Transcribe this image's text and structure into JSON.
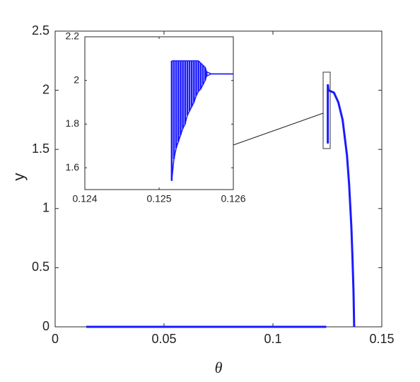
{
  "chart_data": [
    {
      "type": "line",
      "x_label": "θ",
      "y_label": "y",
      "xlim": [
        0,
        0.15
      ],
      "ylim": [
        0,
        2.5
      ],
      "xticks": [
        0,
        0.05,
        0.1,
        0.15
      ],
      "yticks": [
        0,
        0.5,
        1,
        1.5,
        2,
        2.5
      ],
      "grid": false,
      "series": [
        {
          "color": "#1a1aff",
          "x": [
            0.0143,
            0.1245
          ],
          "values": [
            0,
            0
          ]
        },
        {
          "color": "#1a1aff",
          "x": [
            0.1252,
            0.1252,
            0.1255,
            0.128,
            0.13,
            0.132,
            0.134,
            0.135,
            0.136,
            0.1365,
            0.137,
            0.1373
          ],
          "values": [
            1.55,
            2.05,
            2.0,
            1.98,
            1.9,
            1.75,
            1.45,
            1.2,
            0.85,
            0.6,
            0.3,
            0
          ]
        }
      ]
    },
    {
      "type": "line",
      "fill_between": true,
      "xlim": [
        0.124,
        0.126
      ],
      "ylim": [
        1.5,
        2.2
      ],
      "xticks": [
        0.124,
        0.125,
        0.126
      ],
      "yticks": [
        1.6,
        1.8,
        2,
        2.2
      ],
      "grid": false,
      "x": [
        0.12517,
        0.1252,
        0.12523,
        0.12526,
        0.12529,
        0.12532,
        0.12535,
        0.12538,
        0.12541,
        0.12544,
        0.12547,
        0.1255,
        0.12553,
        0.12556,
        0.12559,
        0.12562,
        0.12564,
        0.1257,
        0.1258,
        0.1259,
        0.126
      ],
      "series": [
        {
          "color": "#1a1aff",
          "values": [
            2.09,
            2.09,
            2.09,
            2.09,
            2.09,
            2.09,
            2.09,
            2.09,
            2.09,
            2.09,
            2.09,
            2.09,
            2.09,
            2.08,
            2.07,
            2.06,
            2.04,
            2.03,
            2.03,
            2.03,
            2.03
          ]
        },
        {
          "color": "#1a1aff",
          "values": [
            1.54,
            1.64,
            1.69,
            1.72,
            1.75,
            1.78,
            1.8,
            1.84,
            1.86,
            1.88,
            1.9,
            1.93,
            1.95,
            1.96,
            1.98,
            2.0,
            2.02,
            2.03,
            2.03,
            2.03,
            2.03
          ]
        }
      ]
    }
  ]
}
